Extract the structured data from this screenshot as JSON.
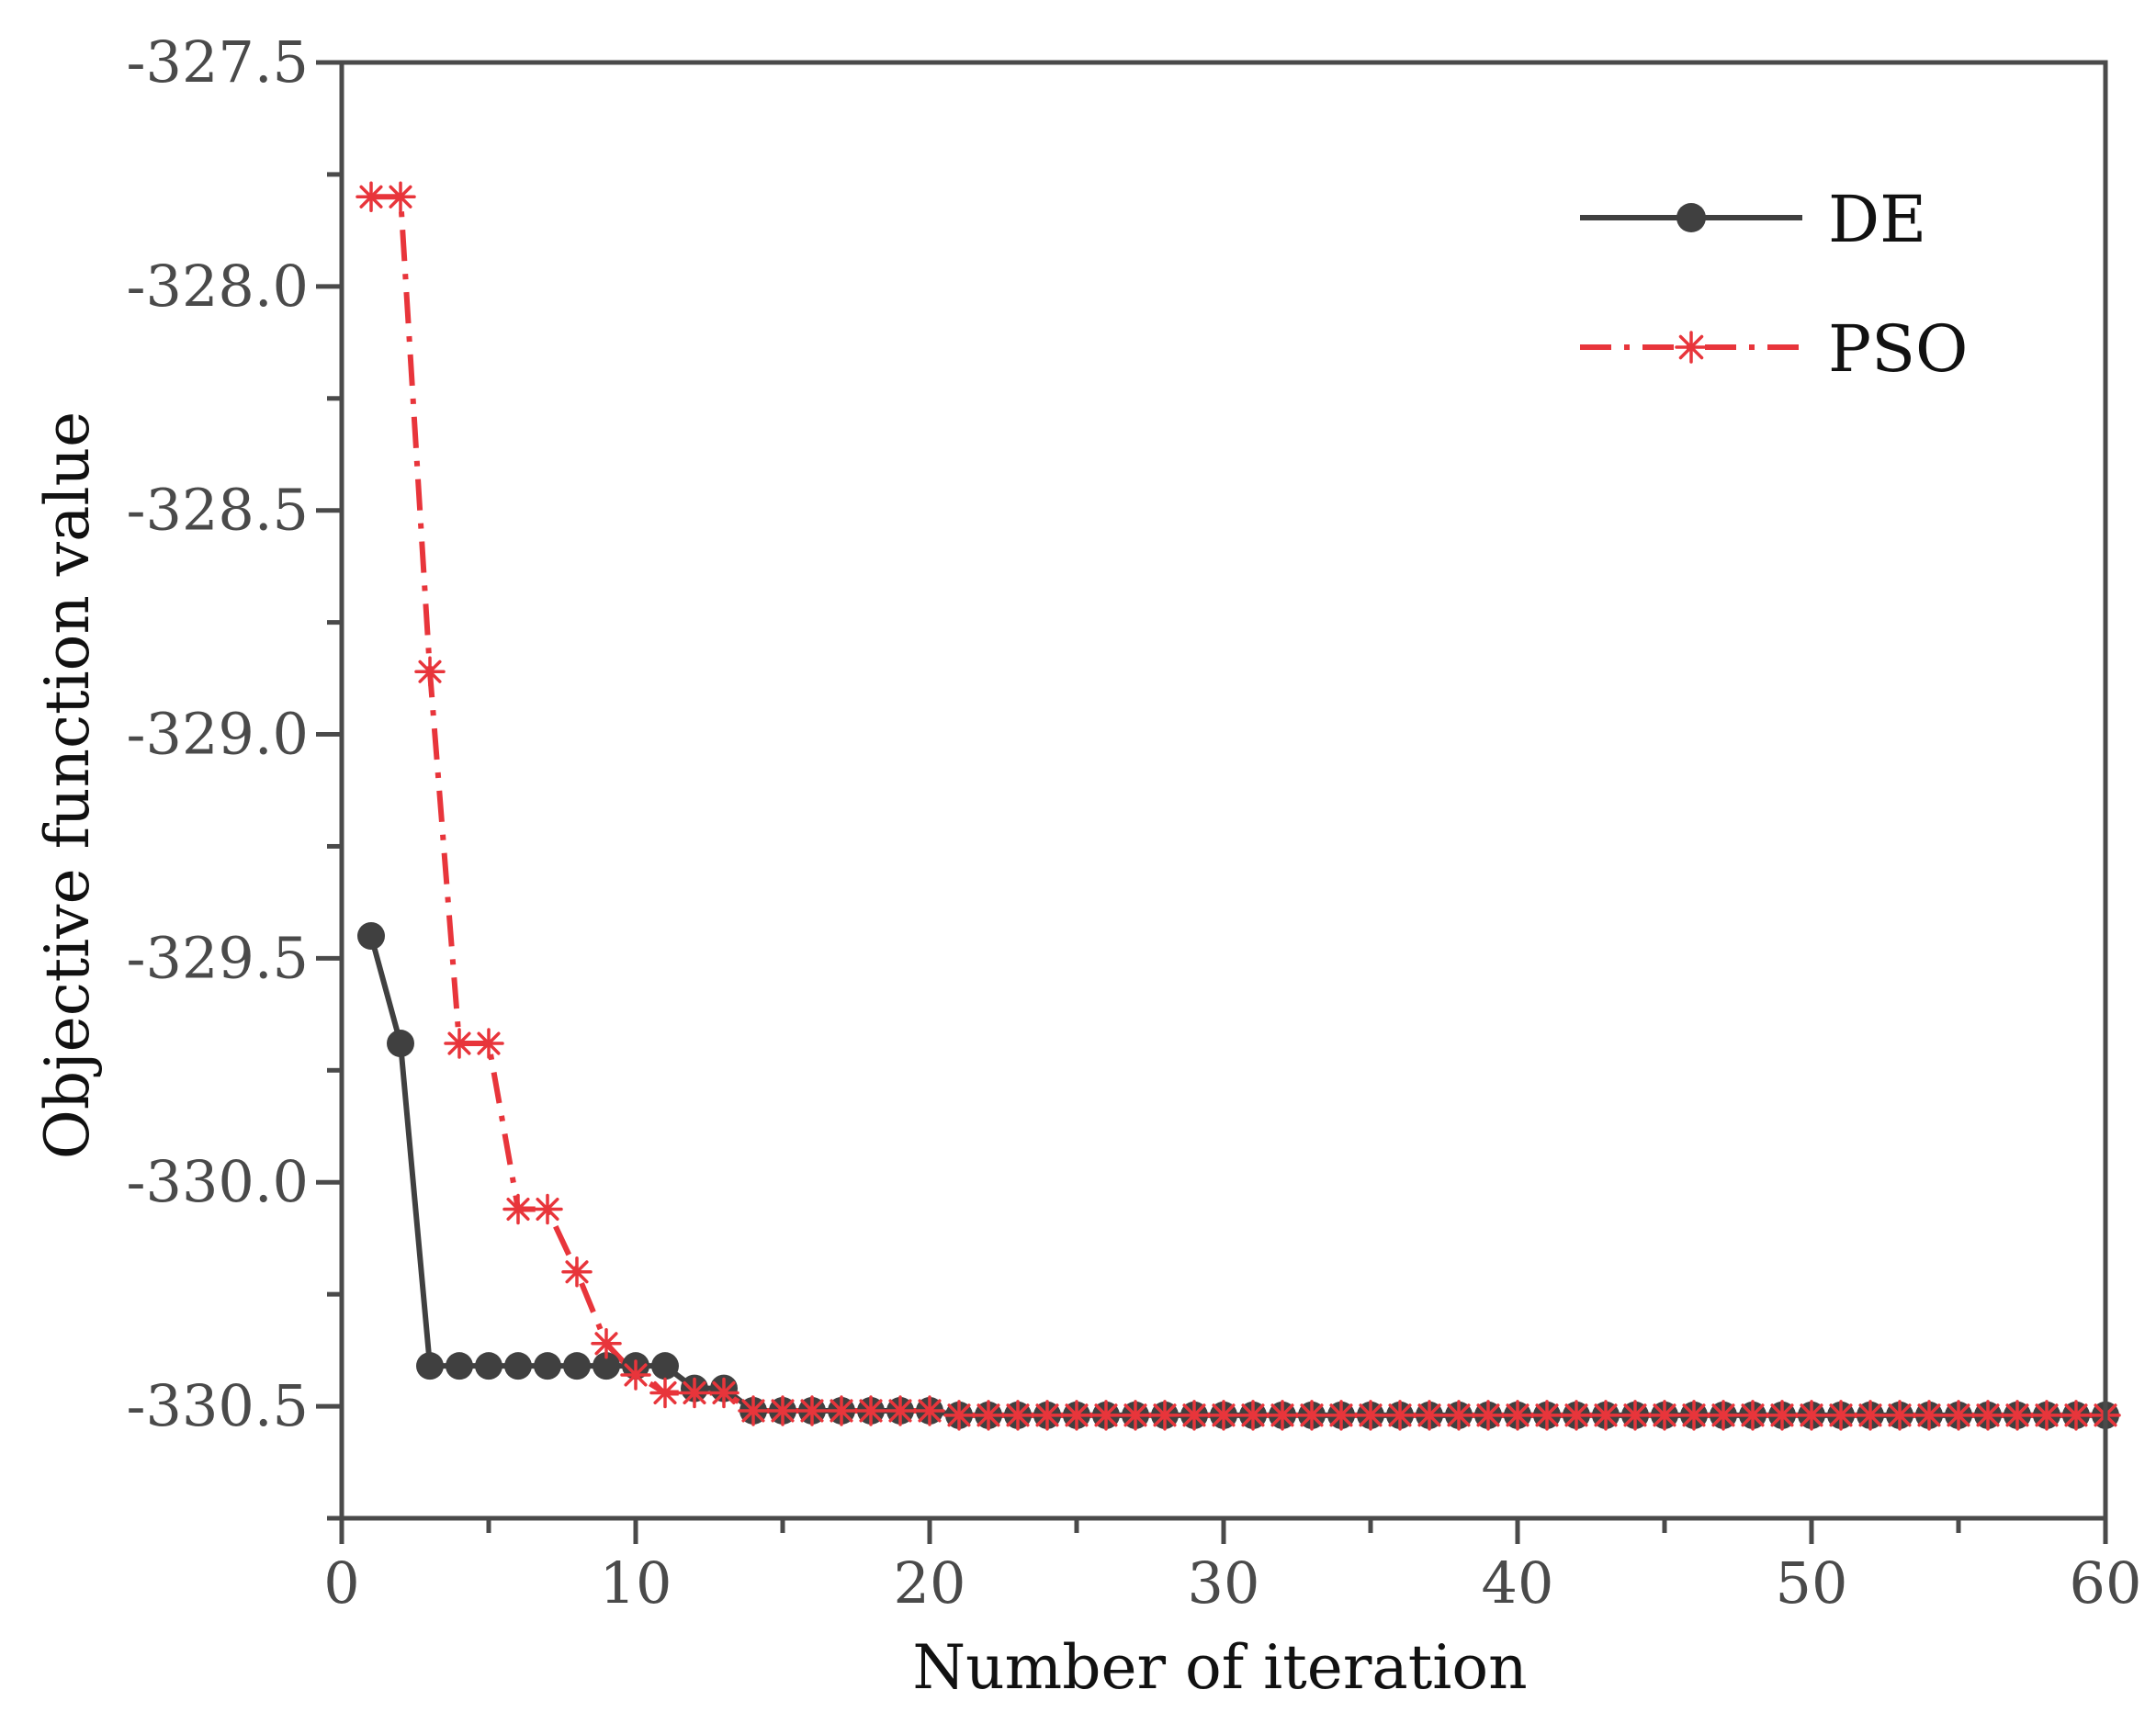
{
  "chart_data": {
    "type": "line",
    "title": "",
    "xlabel": "Number of iteration",
    "ylabel": "Objective function value",
    "xlim": [
      0,
      60
    ],
    "ylim": [
      -330.75,
      -327.5
    ],
    "x_ticks": [
      0,
      10,
      20,
      30,
      40,
      50,
      60
    ],
    "x_tick_labels": [
      "0",
      "10",
      "20",
      "30",
      "40",
      "50",
      "60"
    ],
    "y_ticks": [
      -327.5,
      -328.0,
      -328.5,
      -329.0,
      -329.5,
      -330.0,
      -330.5
    ],
    "y_tick_labels": [
      "-327.5",
      "-328.0",
      "-328.5",
      "-329.0",
      "-329.5",
      "-330.0",
      "-330.5"
    ],
    "legend_position": "top-right",
    "colors": {
      "de": "#404040",
      "pso": "#e8353b",
      "axis": "#4a4a4a"
    },
    "series": [
      {
        "name": "DE",
        "style": "solid",
        "marker": "circle",
        "x": [
          1,
          2,
          3,
          4,
          5,
          6,
          7,
          8,
          9,
          10,
          11,
          12,
          13,
          14,
          15,
          16,
          17,
          18,
          19,
          20,
          21,
          22,
          23,
          24,
          25,
          26,
          27,
          28,
          29,
          30,
          31,
          32,
          33,
          34,
          35,
          36,
          37,
          38,
          39,
          40,
          41,
          42,
          43,
          44,
          45,
          46,
          47,
          48,
          49,
          50,
          51,
          52,
          53,
          54,
          55,
          56,
          57,
          58,
          59,
          60
        ],
        "values": [
          -329.45,
          -329.69,
          -330.41,
          -330.41,
          -330.41,
          -330.41,
          -330.41,
          -330.41,
          -330.41,
          -330.41,
          -330.41,
          -330.46,
          -330.46,
          -330.51,
          -330.51,
          -330.51,
          -330.51,
          -330.51,
          -330.51,
          -330.51,
          -330.52,
          -330.52,
          -330.52,
          -330.52,
          -330.52,
          -330.52,
          -330.52,
          -330.52,
          -330.52,
          -330.52,
          -330.52,
          -330.52,
          -330.52,
          -330.52,
          -330.52,
          -330.52,
          -330.52,
          -330.52,
          -330.52,
          -330.52,
          -330.52,
          -330.52,
          -330.52,
          -330.52,
          -330.52,
          -330.52,
          -330.52,
          -330.52,
          -330.52,
          -330.52,
          -330.52,
          -330.52,
          -330.52,
          -330.52,
          -330.52,
          -330.52,
          -330.52,
          -330.52,
          -330.52,
          -330.52
        ]
      },
      {
        "name": "PSO",
        "style": "dash-dot",
        "marker": "asterisk",
        "x": [
          1,
          2,
          3,
          4,
          5,
          6,
          7,
          8,
          9,
          10,
          11,
          12,
          13,
          14,
          15,
          16,
          17,
          18,
          19,
          20,
          21,
          22,
          23,
          24,
          25,
          26,
          27,
          28,
          29,
          30,
          31,
          32,
          33,
          34,
          35,
          36,
          37,
          38,
          39,
          40,
          41,
          42,
          43,
          44,
          45,
          46,
          47,
          48,
          49,
          50,
          51,
          52,
          53,
          54,
          55,
          56,
          57,
          58,
          59,
          60
        ],
        "values": [
          -327.8,
          -327.8,
          -328.86,
          -329.69,
          -329.69,
          -330.06,
          -330.06,
          -330.2,
          -330.36,
          -330.43,
          -330.47,
          -330.47,
          -330.47,
          -330.51,
          -330.51,
          -330.51,
          -330.51,
          -330.51,
          -330.51,
          -330.51,
          -330.52,
          -330.52,
          -330.52,
          -330.52,
          -330.52,
          -330.52,
          -330.52,
          -330.52,
          -330.52,
          -330.52,
          -330.52,
          -330.52,
          -330.52,
          -330.52,
          -330.52,
          -330.52,
          -330.52,
          -330.52,
          -330.52,
          -330.52,
          -330.52,
          -330.52,
          -330.52,
          -330.52,
          -330.52,
          -330.52,
          -330.52,
          -330.52,
          -330.52,
          -330.52,
          -330.52,
          -330.52,
          -330.52,
          -330.52,
          -330.52,
          -330.52,
          -330.52,
          -330.52,
          -330.52,
          -330.52
        ]
      }
    ]
  }
}
